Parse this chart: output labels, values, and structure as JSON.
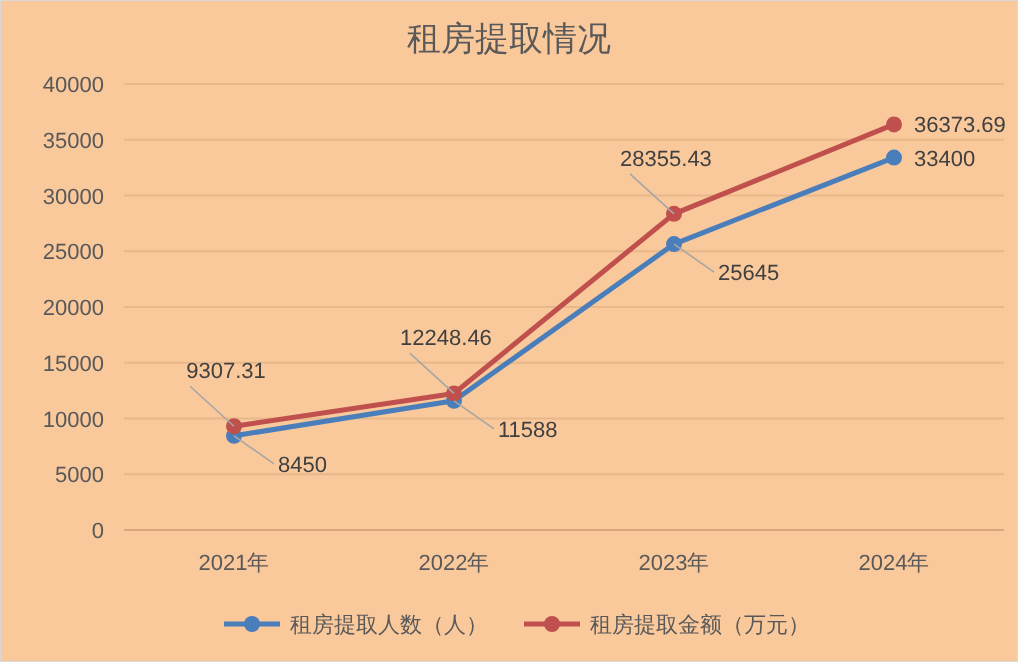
{
  "chart_data": {
    "type": "line",
    "title": "租房提取情况",
    "categories": [
      "2021年",
      "2022年",
      "2023年",
      "2024年"
    ],
    "series": [
      {
        "name": "租房提取人数（人）",
        "color": "#4a7ebb",
        "values": [
          8450,
          11588,
          25645,
          33400
        ]
      },
      {
        "name": "租房提取金额（万元）",
        "color": "#c0504d",
        "values": [
          9307.31,
          12248.46,
          28355.43,
          36373.69
        ]
      }
    ],
    "ylim": [
      0,
      40000
    ],
    "yticks": [
      0,
      5000,
      10000,
      15000,
      20000,
      25000,
      30000,
      35000,
      40000
    ],
    "grid": "y",
    "legend": "bottom",
    "marker": "circle",
    "line_style": "solid",
    "data_labels": true
  }
}
